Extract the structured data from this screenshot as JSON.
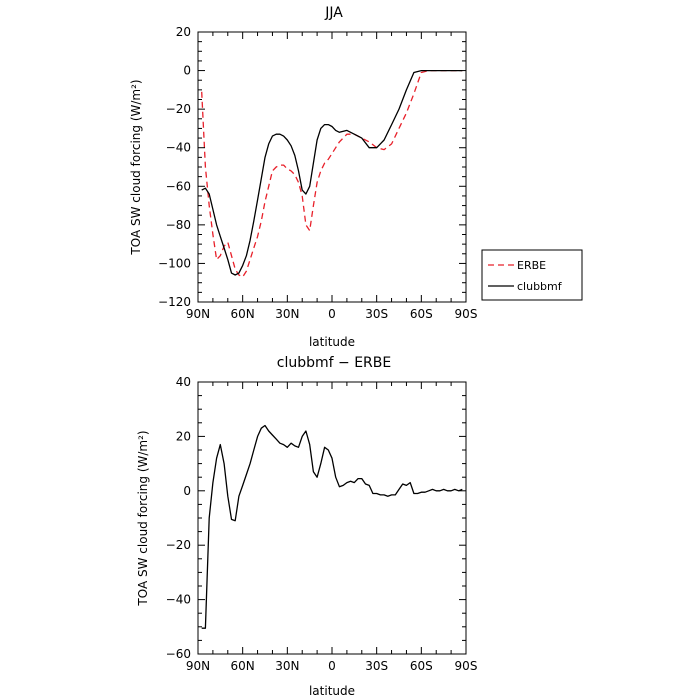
{
  "chart_data": [
    {
      "type": "line",
      "title": "JJA",
      "xlabel": "latitude",
      "ylabel": "TOA SW cloud forcing (W/m²)",
      "xlim": [
        90,
        -90
      ],
      "ylim": [
        -120,
        20
      ],
      "x_ticks": [
        90,
        60,
        30,
        0,
        -30,
        -60,
        -90
      ],
      "x_tick_labels": [
        "90N",
        "60N",
        "30N",
        "0",
        "30S",
        "60S",
        "90S"
      ],
      "y_ticks": [
        20,
        0,
        -20,
        -40,
        -60,
        -80,
        -100,
        -120
      ],
      "y_tick_labels": [
        "20",
        "0",
        "−20",
        "−40",
        "−60",
        "−80",
        "−100",
        "−120"
      ],
      "legend_position": "right",
      "series": [
        {
          "name": "ERBE",
          "color": "#e8202a",
          "dash": "dashed",
          "x": [
            87.5,
            85,
            82.5,
            80,
            77.5,
            75,
            72.5,
            70,
            67.5,
            65,
            62.5,
            60,
            57.5,
            55,
            52.5,
            50,
            47.5,
            45,
            42.5,
            40,
            37.5,
            35,
            32.5,
            30,
            27.5,
            25,
            22.5,
            20,
            17.5,
            15,
            12.5,
            10,
            7.5,
            5,
            2.5,
            0,
            -2.5,
            -5,
            -10,
            -15,
            -20,
            -25,
            -30,
            -35,
            -40,
            -45,
            -50,
            -55,
            -60,
            -65,
            -70,
            -75,
            -80,
            -85,
            -87.5
          ],
          "y": [
            -11,
            -50,
            -70,
            -85,
            -98,
            -96,
            -91,
            -89,
            -96,
            -103,
            -106,
            -107,
            -104,
            -98,
            -92,
            -86,
            -78,
            -68,
            -60,
            -52,
            -50,
            -49,
            -49,
            -51,
            -52,
            -54,
            -58,
            -65,
            -80,
            -83,
            -70,
            -58,
            -52,
            -48,
            -46,
            -43,
            -40,
            -37,
            -33,
            -33,
            -35,
            -37,
            -40,
            -41,
            -38,
            -30,
            -22,
            -12,
            -1,
            0,
            0,
            0,
            0,
            0,
            0
          ]
        },
        {
          "name": "clubbmf",
          "color": "#000000",
          "dash": "solid",
          "x": [
            87.5,
            85,
            82.5,
            80,
            77.5,
            75,
            72.5,
            70,
            67.5,
            65,
            62.5,
            60,
            57.5,
            55,
            52.5,
            50,
            47.5,
            45,
            42.5,
            40,
            37.5,
            35,
            32.5,
            30,
            27.5,
            25,
            22.5,
            20,
            17.5,
            15,
            12.5,
            10,
            7.5,
            5,
            2.5,
            0,
            -2.5,
            -5,
            -10,
            -15,
            -20,
            -25,
            -30,
            -35,
            -40,
            -45,
            -50,
            -55,
            -60,
            -65,
            -70,
            -75,
            -80,
            -85,
            -87.5
          ],
          "y": [
            -62,
            -61,
            -64,
            -72,
            -80,
            -86,
            -92,
            -98,
            -105,
            -106,
            -105,
            -101,
            -96,
            -88,
            -78,
            -67,
            -56,
            -45,
            -38,
            -34,
            -33,
            -33,
            -34,
            -36,
            -39,
            -44,
            -52,
            -62,
            -64,
            -60,
            -48,
            -36,
            -30,
            -28,
            -28,
            -29,
            -31,
            -32,
            -31,
            -33,
            -35,
            -40,
            -40,
            -36,
            -28,
            -20,
            -10,
            -1,
            0,
            0,
            0,
            0,
            0,
            0,
            0
          ]
        }
      ]
    },
    {
      "type": "line",
      "title": "clubbmf − ERBE",
      "xlabel": "latitude",
      "ylabel": "TOA SW cloud forcing (W/m²)",
      "xlim": [
        90,
        -90
      ],
      "ylim": [
        -60,
        40
      ],
      "x_ticks": [
        90,
        60,
        30,
        0,
        -30,
        -60,
        -90
      ],
      "x_tick_labels": [
        "90N",
        "60N",
        "30N",
        "0",
        "30S",
        "60S",
        "90S"
      ],
      "y_ticks": [
        40,
        20,
        0,
        -20,
        -40,
        -60
      ],
      "y_tick_labels": [
        "40",
        "20",
        "0",
        "−20",
        "−40",
        "−60"
      ],
      "series": [
        {
          "color": "#000000",
          "dash": "solid",
          "x": [
            87.5,
            85,
            82.5,
            80,
            77.5,
            75,
            72.5,
            70,
            67.5,
            65,
            62.5,
            60,
            57.5,
            55,
            52.5,
            50,
            47.5,
            45,
            42.5,
            40,
            37.5,
            35,
            32.5,
            30,
            27.5,
            25,
            22.5,
            20,
            17.5,
            15,
            12.5,
            10,
            7.5,
            5,
            2.5,
            0,
            -2.5,
            -5,
            -7.5,
            -10,
            -12.5,
            -15,
            -17.5,
            -20,
            -22.5,
            -25,
            -27.5,
            -30,
            -32.5,
            -35,
            -37.5,
            -40,
            -42.5,
            -45,
            -47.5,
            -50,
            -52.5,
            -55,
            -57.5,
            -60,
            -62.5,
            -65,
            -67.5,
            -70,
            -72.5,
            -75,
            -77.5,
            -80,
            -82.5,
            -85,
            -87.5
          ],
          "y": [
            -50.5,
            -50.5,
            -10,
            3,
            12,
            17,
            10,
            -2,
            -10.5,
            -11,
            -2,
            2,
            6,
            10,
            15,
            20,
            23,
            24,
            22,
            20.5,
            19,
            17.5,
            17,
            16,
            17.5,
            16.5,
            16,
            20,
            22,
            17,
            7,
            5,
            10,
            16,
            15,
            12,
            5,
            1.5,
            2,
            3,
            3.5,
            3,
            4.5,
            4.5,
            2.5,
            2,
            -1,
            -1,
            -1.5,
            -1.5,
            -2,
            -1.5,
            -1.5,
            0.5,
            2.5,
            2,
            3,
            -1,
            -1,
            -0.5,
            -0.5,
            0,
            0.5,
            0,
            0,
            0.5,
            0,
            0,
            0.5,
            0,
            0.5
          ]
        }
      ]
    }
  ]
}
